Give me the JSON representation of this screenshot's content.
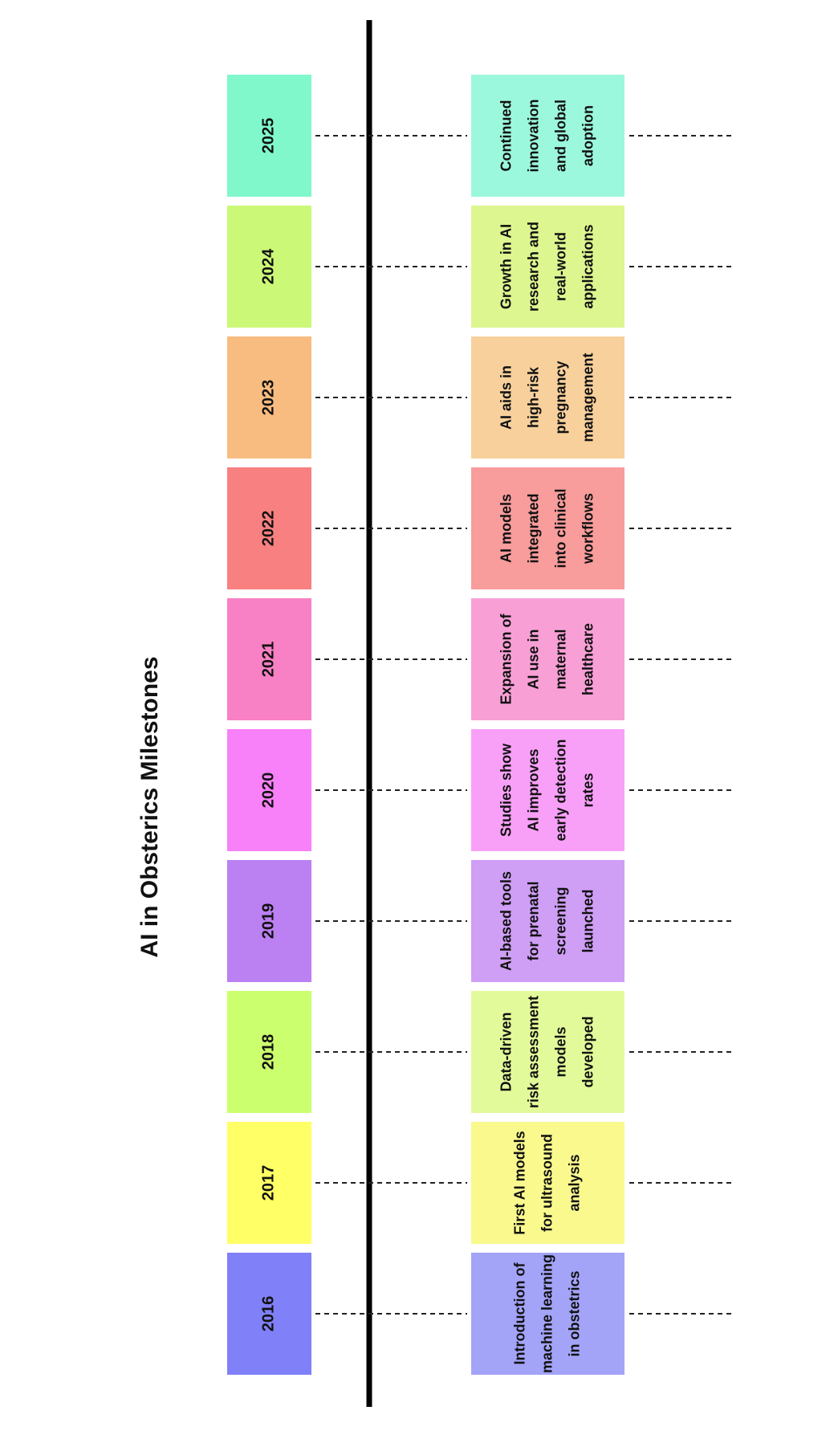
{
  "title": "AI in Obsterics Milestones",
  "milestones": [
    {
      "year": "2016",
      "description": [
        "Introduction of",
        "machine learning",
        "in obstetrics"
      ]
    },
    {
      "year": "2017",
      "description": [
        "First AI models",
        "for ultrasound",
        "analysis"
      ]
    },
    {
      "year": "2018",
      "description": [
        "Data-driven",
        "risk assessment",
        "models",
        "developed"
      ]
    },
    {
      "year": "2019",
      "description": [
        "AI-based tools",
        "for prenatal",
        "screening",
        "launched"
      ]
    },
    {
      "year": "2020",
      "description": [
        "Studies show",
        "AI improves",
        "early detection",
        "rates"
      ]
    },
    {
      "year": "2021",
      "description": [
        "Expansion of",
        "AI use in",
        "maternal",
        "healthcare"
      ]
    },
    {
      "year": "2022",
      "description": [
        "AI models",
        "integrated",
        "into clinical",
        "workflows"
      ]
    },
    {
      "year": "2023",
      "description": [
        "AI aids in",
        "high-risk",
        "pregnancy",
        "management"
      ]
    },
    {
      "year": "2024",
      "description": [
        "Growth in AI",
        "research and",
        "real-world",
        "applications"
      ]
    },
    {
      "year": "2025",
      "description": [
        "Continued",
        "innovation",
        "and global",
        "adoption"
      ]
    }
  ]
}
